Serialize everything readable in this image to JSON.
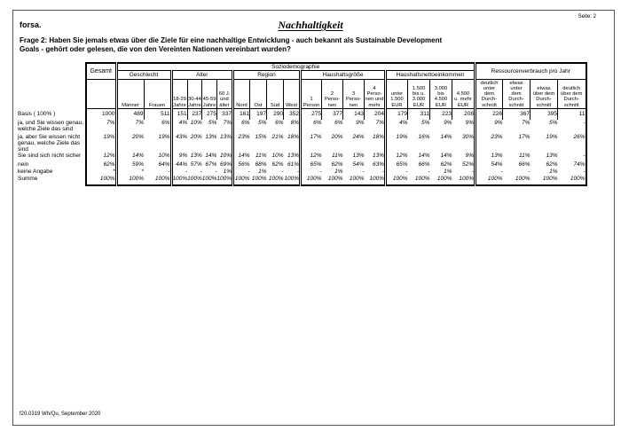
{
  "page": {
    "brand": "forsa.",
    "title": "Nachhaltigkeit",
    "page_label": "Seite: 2",
    "question_line1": "Frage 2: Haben Sie jemals etwas über die Ziele für eine nachhaltige Entwicklung - auch bekannt als Sustainable Development",
    "question_line2": "Goals - gehört oder gelesen, die von den Vereinten Nationen vereinbart wurden?",
    "footer": "f20.0319 Wh/Qu, September 2020"
  },
  "table": {
    "top_group": "Soziodemographie",
    "gesamt_label": "Gesamt",
    "resource_group_label": "Ressourcenverbrauch pro Jahr",
    "groups": [
      {
        "label": "Geschlecht",
        "cols": [
          "Männer",
          "Frauen"
        ]
      },
      {
        "label": "Alter",
        "cols": [
          "18-29\nJahre",
          "30-44\nJahre",
          "45-59\nJahre",
          "60 J.\nund\nälter"
        ]
      },
      {
        "label": "Region",
        "cols": [
          "Nord",
          "Ost",
          "Süd",
          "West"
        ]
      },
      {
        "label": "Haushaltsgröße",
        "cols": [
          "1\nPerson",
          "2\nPerso-\nnen",
          "3\nPerso-\nnen",
          "4\nPerso-\nnen und\nmehr"
        ]
      },
      {
        "label": "Haushaltsnettoeinkommen",
        "cols": [
          "unter\n1.500\nEUR",
          "1.500\nbis u.\n3.000\nEUR",
          "3.000\nbis\n4.500\nEUR",
          "4.500\nu. mehr\nEUR"
        ]
      }
    ],
    "resource_cols": [
      "deutlich\nunter\ndem\nDurch-\nschnitt",
      "etwas\nunter\ndem\nDurch-\nschnitt",
      "etwas\nüber dem\nDurch-\nschnitt",
      "deutlich\nüber dem\nDurch-\nschnitt"
    ],
    "basis": {
      "label": "Basis ( 100% )",
      "values": [
        "1000",
        "489",
        "511",
        "151",
        "237",
        "275",
        "337",
        "161",
        "197",
        "290",
        "352",
        "275",
        "377",
        "143",
        "204",
        "179",
        "311",
        "223",
        "208",
        "226",
        "367",
        "395",
        "11"
      ]
    },
    "rows": [
      {
        "label": "ja, und Sie wissen genau,\nwelche Ziele das sind",
        "values": [
          "7%",
          "7%",
          "6%",
          "4%",
          "10%",
          "5%",
          "7%",
          "6%",
          "5%",
          "6%",
          "8%",
          "6%",
          "6%",
          "9%",
          "7%",
          "4%",
          "5%",
          "9%",
          "9%",
          "9%",
          "7%",
          "5%",
          "-"
        ]
      },
      {
        "label": "ja, aber Sie wissen nicht\ngenau, welche Ziele das sind",
        "values": [
          "19%",
          "20%",
          "19%",
          "43%",
          "20%",
          "13%",
          "13%",
          "23%",
          "15%",
          "21%",
          "18%",
          "17%",
          "20%",
          "24%",
          "18%",
          "19%",
          "16%",
          "14%",
          "30%",
          "23%",
          "17%",
          "19%",
          "26%"
        ]
      },
      {
        "label": "Sie sind sich nicht sicher",
        "values": [
          "12%",
          "14%",
          "10%",
          "9%",
          "13%",
          "14%",
          "10%",
          "14%",
          "11%",
          "10%",
          "13%",
          "12%",
          "11%",
          "13%",
          "13%",
          "12%",
          "14%",
          "14%",
          "9%",
          "13%",
          "11%",
          "13%",
          "-"
        ]
      },
      {
        "label": "nein",
        "values": [
          "62%",
          "59%",
          "64%",
          "44%",
          "57%",
          "67%",
          "69%",
          "56%",
          "68%",
          "62%",
          "61%",
          "65%",
          "62%",
          "54%",
          "63%",
          "65%",
          "66%",
          "62%",
          "52%",
          "54%",
          "66%",
          "62%",
          "74%"
        ]
      },
      {
        "label": "keine Angabe",
        "values": [
          "*",
          "*",
          "-",
          "-",
          "-",
          "-",
          "1%",
          "-",
          "1%",
          "-",
          "-",
          "-",
          "1%",
          "-",
          "-",
          "-",
          "-",
          "1%",
          "-",
          "-",
          "-",
          "1%",
          "-"
        ]
      },
      {
        "label": "Summe",
        "values": [
          "100%",
          "100%",
          "100%",
          "100%",
          "100%",
          "100%",
          "100%",
          "100%",
          "100%",
          "100%",
          "100%",
          "100%",
          "100%",
          "100%",
          "100%",
          "100%",
          "100%",
          "100%",
          "100%",
          "100%",
          "100%",
          "100%",
          "100%"
        ]
      }
    ]
  }
}
